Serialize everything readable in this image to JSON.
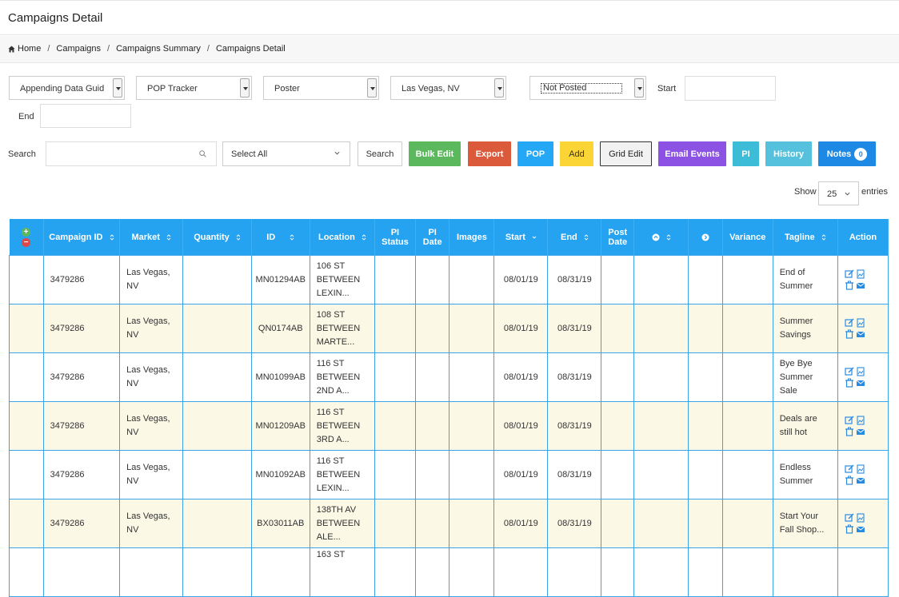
{
  "page": {
    "title": "Campaigns Detail"
  },
  "breadcrumb": [
    "Home",
    "Campaigns",
    "Campaigns Summary",
    "Campaigns Detail"
  ],
  "filters": {
    "appending": "Appending Data Guid",
    "tracker": "POP Tracker",
    "media": "Poster",
    "market": "Las Vegas, NV",
    "status": "Not Posted",
    "start_label": "Start",
    "end_label": "End"
  },
  "search": {
    "label": "Search",
    "select_value": "Select All",
    "button": "Search"
  },
  "buttons": {
    "bulk_edit": "Bulk Edit",
    "export": "Export",
    "pop": "POP",
    "add": "Add",
    "grid_edit": "Grid Edit",
    "email_events": "Email Events",
    "pi": "PI",
    "history": "History",
    "notes": "Notes",
    "notes_count": "0"
  },
  "colors": {
    "bulk_edit": "#5cb85c",
    "export": "#dc5a3c",
    "pop": "#24a8f5",
    "add": "#fbd535",
    "email_events": "#8b52e3",
    "pi": "#3cbcd6",
    "history": "#55c1dc",
    "notes": "#1e88e5",
    "header": "#26a3f0"
  },
  "show": {
    "label": "Show",
    "value": "25",
    "entries": "entries"
  },
  "columns": [
    "Campaign ID",
    "Market",
    "Quantity",
    "ID",
    "Location",
    "PI Status",
    "PI Date",
    "Images",
    "Start",
    "End",
    "Post Date",
    "",
    "",
    "Variance",
    "Tagline",
    "Action"
  ],
  "rows": [
    {
      "campaign_id": "3479286",
      "market1": "Las Vegas,",
      "market2": "NV",
      "id": "MN01294AB",
      "loc1": "106 ST",
      "loc2": "BETWEEN",
      "loc3": "LEXIN...",
      "start": "08/01/19",
      "end": "08/31/19",
      "tag1": "End of",
      "tag2": "Summer",
      "tag3": ""
    },
    {
      "campaign_id": "3479286",
      "market1": "Las Vegas,",
      "market2": "NV",
      "id": "QN0174AB",
      "loc1": "108 ST",
      "loc2": "BETWEEN",
      "loc3": "MARTE...",
      "start": "08/01/19",
      "end": "08/31/19",
      "tag1": "Summer",
      "tag2": "Savings",
      "tag3": ""
    },
    {
      "campaign_id": "3479286",
      "market1": "Las Vegas,",
      "market2": "NV",
      "id": "MN01099AB",
      "loc1": "116 ST",
      "loc2": "BETWEEN",
      "loc3": "2ND A...",
      "start": "08/01/19",
      "end": "08/31/19",
      "tag1": "Bye Bye",
      "tag2": "Summer",
      "tag3": "Sale"
    },
    {
      "campaign_id": "3479286",
      "market1": "Las Vegas,",
      "market2": "NV",
      "id": "MN01209AB",
      "loc1": "116 ST",
      "loc2": "BETWEEN",
      "loc3": "3RD A...",
      "start": "08/01/19",
      "end": "08/31/19",
      "tag1": "Deals are",
      "tag2": "still hot",
      "tag3": ""
    },
    {
      "campaign_id": "3479286",
      "market1": "Las Vegas,",
      "market2": "NV",
      "id": "MN01092AB",
      "loc1": "116 ST",
      "loc2": "BETWEEN",
      "loc3": "LEXIN...",
      "start": "08/01/19",
      "end": "08/31/19",
      "tag1": "Endless",
      "tag2": "Summer",
      "tag3": ""
    },
    {
      "campaign_id": "3479286",
      "market1": "Las Vegas,",
      "market2": "NV",
      "id": "BX03011AB",
      "loc1": "138TH AV",
      "loc2": "BETWEEN",
      "loc3": "ALE...",
      "start": "08/01/19",
      "end": "08/31/19",
      "tag1": "Start Your",
      "tag2": "Fall Shop...",
      "tag3": ""
    },
    {
      "campaign_id": "",
      "market1": "",
      "market2": "",
      "id": "",
      "loc1": "163 ST",
      "loc2": "",
      "loc3": "",
      "start": "",
      "end": "",
      "tag1": "",
      "tag2": "",
      "tag3": ""
    }
  ]
}
